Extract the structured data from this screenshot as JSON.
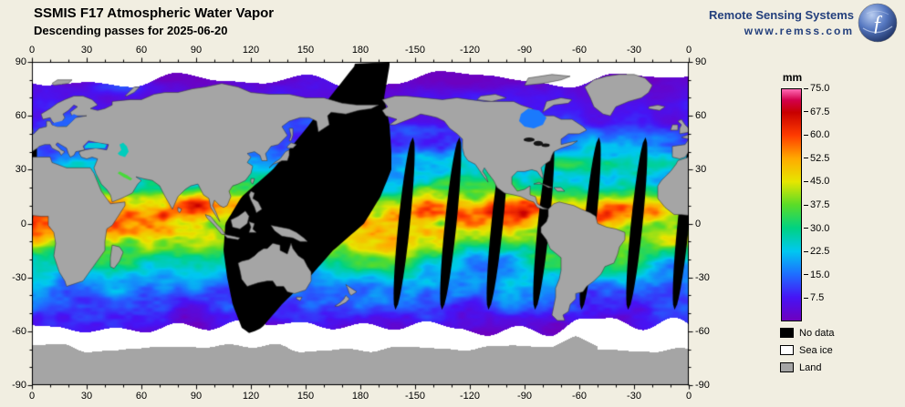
{
  "header": {
    "title": "SSMIS F17 Atmospheric Water Vapor",
    "subtitle": "Descending passes for 2025-06-20"
  },
  "branding": {
    "name": "Remote Sensing Systems",
    "url": "www.remss.com",
    "logo": "remss-globe-logo"
  },
  "axes": {
    "lon_ticks": [
      "0",
      "30",
      "60",
      "90",
      "120",
      "150",
      "180",
      "-150",
      "-120",
      "-90",
      "-60",
      "-30",
      "0"
    ],
    "lat_ticks": [
      "90",
      "60",
      "30",
      "0",
      "-30",
      "-60",
      "-90"
    ]
  },
  "colorbar": {
    "unit": "mm",
    "min": 0,
    "max": 75,
    "tick_labels": [
      "75.0",
      "67.5",
      "60.0",
      "52.5",
      "45.0",
      "37.5",
      "30.0",
      "22.5",
      "15.0",
      "7.5"
    ],
    "stops": [
      {
        "v": 0,
        "c": "#6e00be"
      },
      {
        "v": 7.5,
        "c": "#4614f5"
      },
      {
        "v": 15,
        "c": "#1e6eff"
      },
      {
        "v": 22.5,
        "c": "#00c8f0"
      },
      {
        "v": 30,
        "c": "#00d282"
      },
      {
        "v": 37.5,
        "c": "#5adc28"
      },
      {
        "v": 45,
        "c": "#e6e600"
      },
      {
        "v": 52.5,
        "c": "#ffaa00"
      },
      {
        "v": 60,
        "c": "#ff3c00"
      },
      {
        "v": 67.5,
        "c": "#c80000"
      },
      {
        "v": 71.5,
        "c": "#d2004b"
      },
      {
        "v": 75,
        "c": "#ff69b4"
      }
    ]
  },
  "legend": [
    {
      "label": "No data",
      "color": "#000000"
    },
    {
      "label": "Sea ice",
      "color": "#ffffff"
    },
    {
      "label": "Land",
      "color": "#a5a5a5"
    }
  ],
  "colors": {
    "background": "#f1eee1",
    "land": "#a5a5a5",
    "sea_ice": "#ffffff",
    "no_data": "#000000",
    "coastline": "#3a3a3a",
    "brand_navy": "#24407d"
  },
  "chart_data": {
    "type": "heatmap",
    "title": "SSMIS F17 Atmospheric Water Vapor",
    "subtitle": "Descending passes for 2025-06-20",
    "value_unit": "mm",
    "value_range": [
      0,
      75
    ],
    "colorbar_ticks": [
      75.0,
      67.5,
      60.0,
      52.5,
      45.0,
      37.5,
      30.0,
      22.5,
      15.0,
      7.5
    ],
    "x_ticks_longitude_deg": [
      0,
      30,
      60,
      90,
      120,
      150,
      180,
      -150,
      -120,
      -90,
      -60,
      -30,
      0
    ],
    "y_ticks_latitude_deg": [
      90,
      60,
      30,
      0,
      -30,
      -60,
      -90
    ],
    "legend_classes": [
      "No data",
      "Sea ice",
      "Land"
    ]
  }
}
